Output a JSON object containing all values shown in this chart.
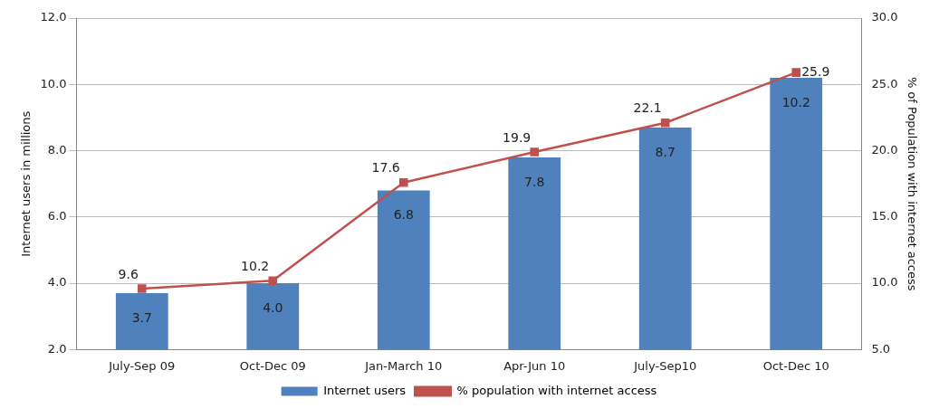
{
  "chart_data": {
    "type": "bar",
    "ylabel": "Internet users in millions",
    "y2label": "% of Population with internet access",
    "categories": [
      "July-Sep 09",
      "Oct-Dec 09",
      "Jan-March 10",
      "Apr-Jun 10",
      "July-Sep10",
      "Oct-Dec 10"
    ],
    "series": [
      {
        "name": "Internet users",
        "color": "#4f81bd",
        "values": [
          3.7,
          4.0,
          6.8,
          7.8,
          8.7,
          10.2
        ],
        "value_labels": [
          "3.7",
          "4.0",
          "6.8",
          "7.8",
          "8.7",
          "10.2"
        ]
      },
      {
        "name": "% population with internet access",
        "type": "line",
        "axis": "y2",
        "color": "#c0504d",
        "values": [
          9.6,
          10.2,
          17.6,
          19.9,
          22.1,
          25.9
        ],
        "value_labels": [
          "9.6",
          "10.2",
          "17.6",
          "19.9",
          "22.1",
          "25.9"
        ]
      }
    ],
    "ylim": [
      2,
      12
    ],
    "yticks": [
      {
        "value": 2,
        "label": "2.0"
      },
      {
        "value": 4,
        "label": "4.0"
      },
      {
        "value": 6,
        "label": "6.0"
      },
      {
        "value": 8,
        "label": "8.0"
      },
      {
        "value": 10,
        "label": "10.0"
      },
      {
        "value": 12,
        "label": "12.0"
      }
    ],
    "y2lim": [
      5,
      30
    ],
    "y2ticks": [
      {
        "value": 5,
        "label": "5.0"
      },
      {
        "value": 10,
        "label": "10.0"
      },
      {
        "value": 15,
        "label": "15.0"
      },
      {
        "value": 20,
        "label": "20.0"
      },
      {
        "value": 25,
        "label": "25.0"
      },
      {
        "value": 30,
        "label": "30.0"
      }
    ],
    "grid": "y",
    "legend": "bottom",
    "marker": "square"
  }
}
